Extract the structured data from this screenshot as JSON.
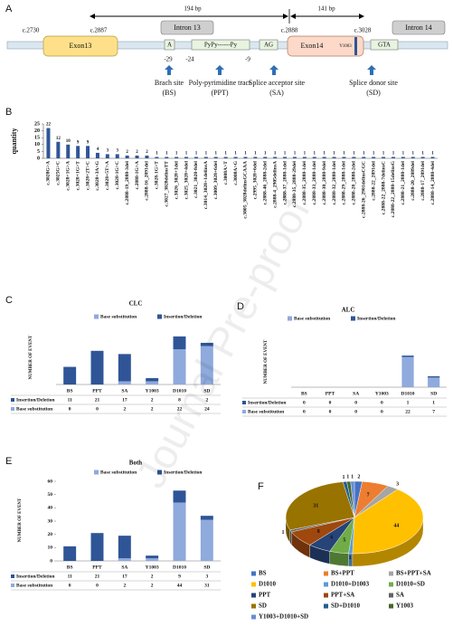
{
  "figure_a": {
    "label": "A",
    "bp_left": "194 bp",
    "bp_right": "141 bp",
    "positions": [
      "c.2730",
      "c.2887",
      "c.2888",
      "c.3028"
    ],
    "boxes": {
      "intron13": "Intron 13",
      "exon13": "Exon13",
      "branch": "A",
      "ppt": "PyPy------Py",
      "ag": "AG",
      "exon14": "Exon14",
      "y1003": "Y1003",
      "gta": "GTA",
      "intron14": "Intron 14"
    },
    "offsets": [
      "-29",
      "-24",
      "-9"
    ],
    "sites": [
      {
        "name": "Brach site",
        "abbr": "(BS)"
      },
      {
        "name": "Poly-pyrimidine tract",
        "abbr": "(PPT)"
      },
      {
        "name": "Splice acceptor site",
        "abbr": "(SA)"
      },
      {
        "name": "Splice donor site",
        "abbr": "(SD)"
      }
    ]
  },
  "chart_data": [
    {
      "type": "bar",
      "panel": "B",
      "ylabel": "quantity",
      "color": "#2f5597",
      "categories": [
        "c.3028G>A",
        "c.3025G>C",
        "c.3028+1G>A",
        "c.3028+1G>T",
        "c.3028+2T>C",
        "c.3028+3A>G",
        "c.3028+5T>A",
        "c.3028-1G>C",
        "c.2888-19_2888-3del",
        "c.2888-1G>A",
        "c.2888-16_2891del",
        "c.3028-1G>T",
        "c.3027_3028delinsTT",
        "c.3026_3028+1del",
        "c.3025_3028+4del",
        "c.3021_3028-8del",
        "c.3014_3028+1delinsA",
        "c.3009_3028+6del",
        "c.3008A>T",
        "c.3008A>G",
        "c.3005_3028delinsGCAAA",
        "c.2995_3028+6del",
        "c.2888-46_2888-2del",
        "c.2888-4_2905delinsA",
        "c.2888-37_2888-1del",
        "c.2888-35_2888-29del",
        "c.2888-35_2888-1del",
        "c.2888-33_2888-1del",
        "c.2888-30_2888-9del",
        "c.2888-32_2888-1del",
        "c.2888-29_2888-1del",
        "c.2888-28_2888-2del",
        "c.2888-26_2901delinsCGC",
        "c.2888-22_2891del",
        "c.2888-22_2888-7delinsC",
        "c.2888-22_2888-15delinsG",
        "c.2888-21_2888-1del",
        "c.2888-20_2889del",
        "c.2888-17_2891del",
        "c.2888-14_2888-4del"
      ],
      "values": [
        22,
        12,
        10,
        9,
        9,
        4,
        3,
        3,
        2,
        2,
        2,
        1,
        1,
        1,
        1,
        1,
        1,
        1,
        1,
        1,
        1,
        1,
        1,
        1,
        1,
        1,
        1,
        1,
        1,
        1,
        1,
        1,
        1,
        1,
        1,
        1,
        1,
        1,
        1,
        1
      ],
      "ylim": [
        0,
        25
      ],
      "yticks": [
        0,
        5,
        10,
        15,
        20,
        25
      ]
    },
    {
      "type": "stacked_bar",
      "panel": "C",
      "title": "CLC",
      "ylabel": "NUMBER OF EVENT",
      "categories": [
        "BS",
        "PPT",
        "SA",
        "Y1003",
        "D1010",
        "SD"
      ],
      "series": [
        {
          "name": "Base substitution",
          "color": "#8faadc",
          "values": [
            0,
            0,
            2,
            2,
            22,
            24
          ]
        },
        {
          "name": "Insertion/Deletion",
          "color": "#2f5597",
          "values": [
            11,
            21,
            17,
            2,
            8,
            2
          ]
        }
      ],
      "ylim": [
        0,
        35
      ]
    },
    {
      "type": "stacked_bar",
      "panel": "D",
      "title": "ALC",
      "ylabel": "NUMBER OF EVENT",
      "categories": [
        "BS",
        "PPT",
        "SA",
        "Y1003",
        "D1010",
        "SD"
      ],
      "series": [
        {
          "name": "Base substitution",
          "color": "#8faadc",
          "values": [
            0,
            0,
            0,
            0,
            22,
            7
          ]
        },
        {
          "name": "Insertion/Deletion",
          "color": "#2f5597",
          "values": [
            0,
            0,
            0,
            0,
            1,
            1
          ]
        }
      ],
      "ylim": [
        0,
        25
      ]
    },
    {
      "type": "stacked_bar",
      "panel": "E",
      "title": "Both",
      "ylabel": "NUMBER OF EVENT",
      "categories": [
        "BS",
        "PPT",
        "SA",
        "Y1003",
        "D1010",
        "SD"
      ],
      "series": [
        {
          "name": "Base substitution",
          "color": "#8faadc",
          "values": [
            0,
            0,
            2,
            2,
            44,
            31
          ]
        },
        {
          "name": "Insertion/Deletion",
          "color": "#2f5597",
          "values": [
            11,
            21,
            17,
            2,
            9,
            3
          ]
        }
      ],
      "ylim": [
        0,
        60
      ],
      "yticks": [
        0,
        10,
        20,
        30,
        40,
        50,
        60
      ]
    },
    {
      "type": "pie",
      "panel": "F",
      "categories": [
        "BS",
        "BS+PPT",
        "BS+PPT+SA",
        "D1010",
        "D1010+D1003",
        "D1010+SD",
        "PPT",
        "PPT+SA",
        "SA",
        "SD",
        "SD+D1010",
        "Y1003",
        "Y1003+D1010+SD"
      ],
      "values": [
        2,
        7,
        3,
        44,
        1,
        5,
        6,
        8,
        1,
        31,
        1,
        1,
        1
      ],
      "colors": [
        "#4472c4",
        "#ed7d31",
        "#a5a5a5",
        "#ffc000",
        "#5b9bd5",
        "#70ad47",
        "#264478",
        "#9e480e",
        "#636363",
        "#997300",
        "#255e91",
        "#43682b",
        "#698ed0"
      ]
    }
  ],
  "watermark": "Journal Pre-proof"
}
